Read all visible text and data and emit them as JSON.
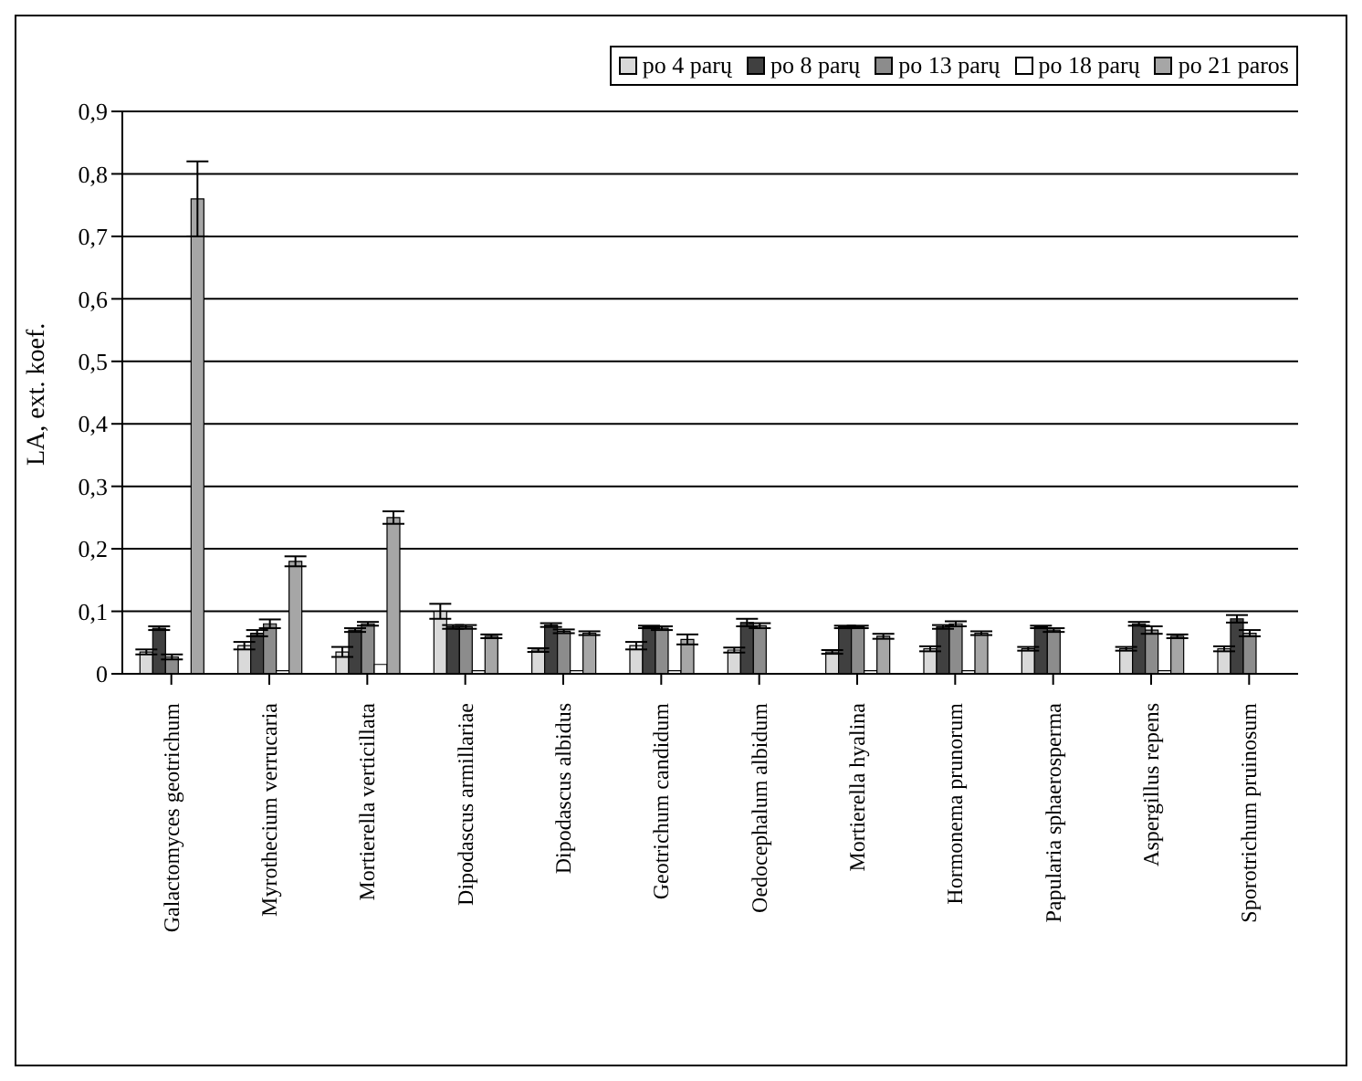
{
  "chart_data": {
    "type": "bar",
    "ylabel": "LA, ext. koef.",
    "categories": [
      "Galactomyces geotrichum",
      "Myrothecium verrucaria",
      "Mortierella verticillata",
      "Dipodascus armillariae",
      "Dipodascus albidus",
      "Geotrichum candidum",
      "Oedocephalum albidum",
      "Mortierella hyalina",
      "Hormonema prunorum",
      "Papularia sphaerosperma",
      "Aspergillus repens",
      "Sporotrichum pruinosum"
    ],
    "series": [
      {
        "name": "po 4 parų",
        "color": "#d9d9d9",
        "values": [
          0.035,
          0.045,
          0.035,
          0.1,
          0.038,
          0.045,
          0.038,
          0.035,
          0.04,
          0.04,
          0.04,
          0.04
        ],
        "errors": [
          0.004,
          0.006,
          0.008,
          0.012,
          0.003,
          0.006,
          0.004,
          0.003,
          0.004,
          0.003,
          0.003,
          0.004
        ]
      },
      {
        "name": "po 8 parų",
        "color": "#404040",
        "values": [
          0.073,
          0.065,
          0.07,
          0.075,
          0.078,
          0.075,
          0.082,
          0.075,
          0.075,
          0.075,
          0.08,
          0.088
        ],
        "errors": [
          0.003,
          0.005,
          0.003,
          0.003,
          0.003,
          0.002,
          0.006,
          0.002,
          0.003,
          0.002,
          0.003,
          0.006
        ]
      },
      {
        "name": "po 13 parų",
        "color": "#8c8c8c",
        "values": [
          0.027,
          0.08,
          0.08,
          0.075,
          0.068,
          0.073,
          0.077,
          0.075,
          0.08,
          0.07,
          0.07,
          0.065
        ],
        "errors": [
          0.004,
          0.007,
          0.003,
          0.003,
          0.003,
          0.003,
          0.004,
          0.002,
          0.004,
          0.003,
          0.006,
          0.005
        ]
      },
      {
        "name": "po 18 parų",
        "color": "#ffffff",
        "values": [
          null,
          0.005,
          0.015,
          0.005,
          0.005,
          0.005,
          null,
          0.005,
          0.005,
          null,
          0.005,
          null
        ]
      },
      {
        "name": "po 21 paros",
        "color": "#a6a6a6",
        "values": [
          0.76,
          0.18,
          0.25,
          0.06,
          0.065,
          0.055,
          null,
          0.06,
          0.065,
          null,
          0.06,
          null
        ],
        "errors": [
          0.06,
          0.008,
          0.01,
          0.003,
          0.003,
          0.008,
          null,
          0.004,
          0.003,
          null,
          0.003,
          null
        ]
      }
    ],
    "ylim": [
      0,
      0.9
    ],
    "yticks": [
      0,
      {
        "value": 0.1,
        "label": "0,1"
      },
      {
        "value": 0.2,
        "label": "0,2"
      },
      {
        "value": 0.3,
        "label": "0,3"
      },
      {
        "value": 0.4,
        "label": "0,4"
      },
      {
        "value": 0.5,
        "label": "0,5"
      },
      {
        "value": 0.6,
        "label": "0,6"
      },
      {
        "value": 0.7,
        "label": "0,7"
      },
      {
        "value": 0.8,
        "label": "0,8"
      },
      {
        "value": 0.9,
        "label": "0,9"
      }
    ],
    "grid": "y",
    "legend": "top right"
  }
}
